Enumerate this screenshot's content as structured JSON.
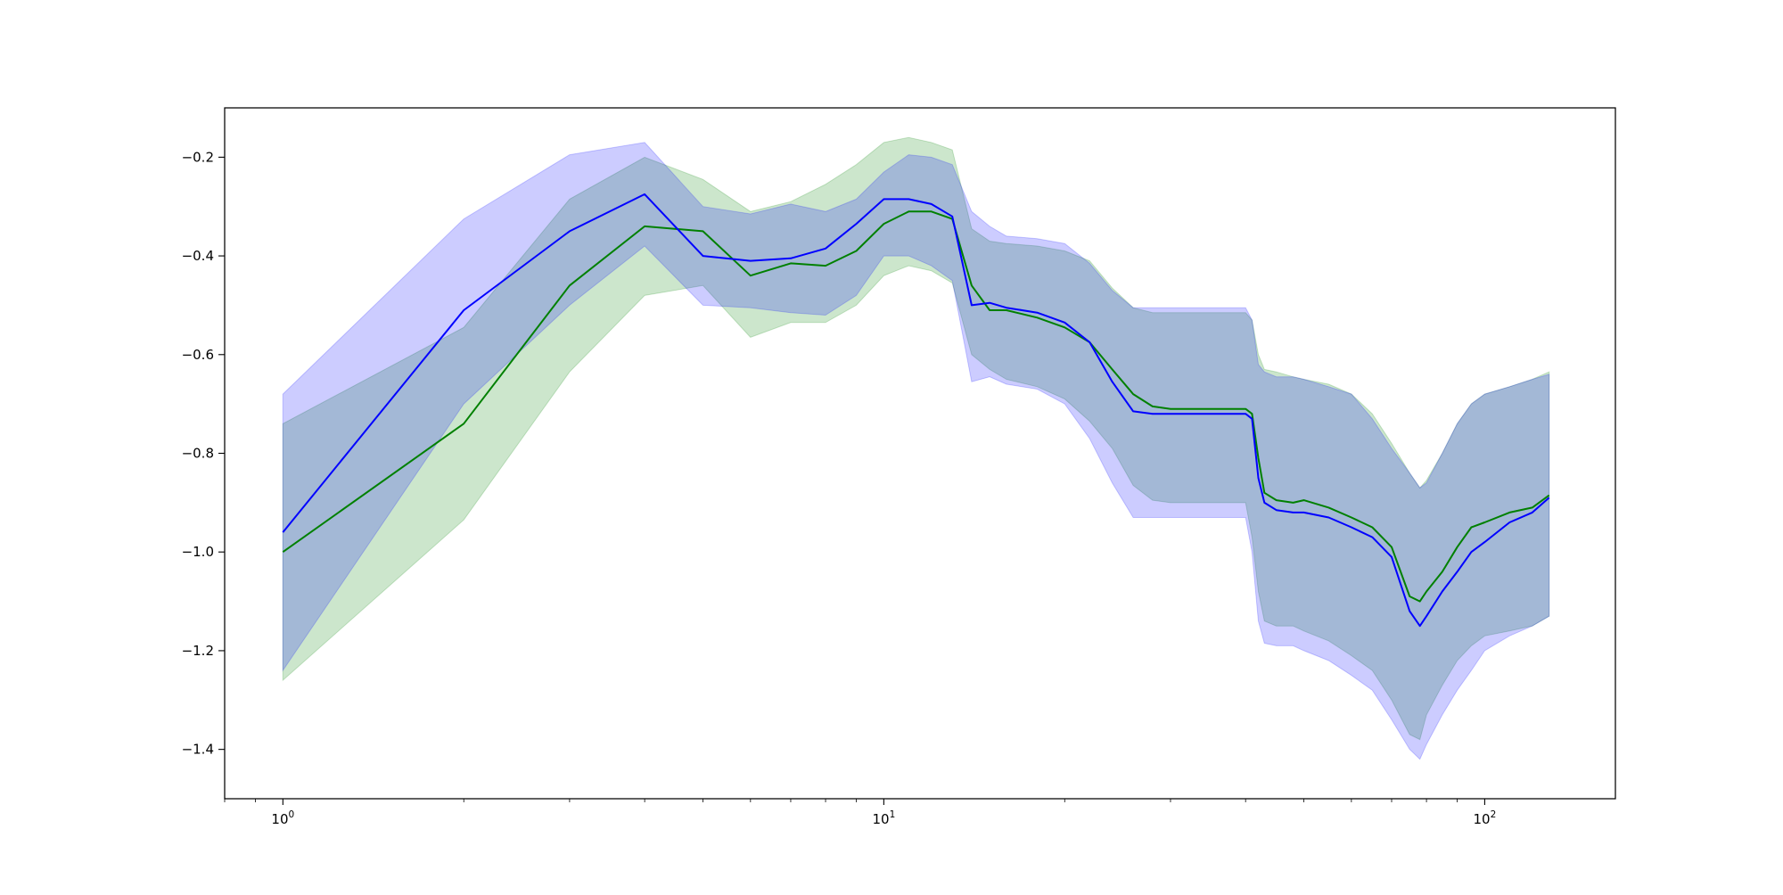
{
  "chart_data": {
    "type": "line",
    "title": "",
    "xlabel": "",
    "ylabel": "",
    "x_scale": "log",
    "xlim": [
      0.8,
      165
    ],
    "ylim": [
      -1.5,
      -0.1
    ],
    "grid": false,
    "legend": "none",
    "x_ticks": [
      {
        "value": 1,
        "base": "10",
        "exp": "0"
      },
      {
        "value": 10,
        "base": "10",
        "exp": "1"
      },
      {
        "value": 100,
        "base": "10",
        "exp": "2"
      }
    ],
    "y_ticks": [
      {
        "value": -0.2,
        "label": "−0.2"
      },
      {
        "value": -0.4,
        "label": "−0.4"
      },
      {
        "value": -0.6,
        "label": "−0.6"
      },
      {
        "value": -0.8,
        "label": "−0.8"
      },
      {
        "value": -1.0,
        "label": "−1.0"
      },
      {
        "value": -1.2,
        "label": "−1.2"
      },
      {
        "value": -1.4,
        "label": "−1.4"
      }
    ],
    "series": [
      {
        "color": "#008000",
        "band_color": "#008000",
        "band_opacity": 0.2,
        "x": [
          1,
          2,
          3,
          4,
          5,
          6,
          7,
          8,
          9,
          10,
          11,
          12,
          13,
          14,
          15,
          16,
          18,
          20,
          22,
          24,
          26,
          28,
          30,
          35,
          40,
          41,
          42,
          43,
          45,
          48,
          50,
          55,
          60,
          65,
          70,
          75,
          78,
          80,
          85,
          90,
          95,
          100,
          110,
          120,
          128
        ],
        "y": [
          -1.0,
          -0.74,
          -0.46,
          -0.34,
          -0.35,
          -0.44,
          -0.415,
          -0.42,
          -0.39,
          -0.335,
          -0.31,
          -0.31,
          -0.325,
          -0.46,
          -0.51,
          -0.51,
          -0.525,
          -0.545,
          -0.575,
          -0.63,
          -0.68,
          -0.705,
          -0.71,
          -0.71,
          -0.71,
          -0.72,
          -0.81,
          -0.88,
          -0.895,
          -0.9,
          -0.895,
          -0.91,
          -0.93,
          -0.95,
          -0.99,
          -1.09,
          -1.1,
          -1.08,
          -1.04,
          -0.99,
          -0.95,
          -0.94,
          -0.92,
          -0.91,
          -0.885
        ],
        "lower": [
          -1.26,
          -0.935,
          -0.635,
          -0.48,
          -0.46,
          -0.565,
          -0.535,
          -0.535,
          -0.5,
          -0.44,
          -0.42,
          -0.43,
          -0.455,
          -0.6,
          -0.63,
          -0.65,
          -0.665,
          -0.69,
          -0.735,
          -0.79,
          -0.865,
          -0.895,
          -0.9,
          -0.9,
          -0.9,
          -0.97,
          -1.08,
          -1.14,
          -1.15,
          -1.15,
          -1.16,
          -1.18,
          -1.21,
          -1.24,
          -1.3,
          -1.37,
          -1.38,
          -1.33,
          -1.27,
          -1.22,
          -1.19,
          -1.17,
          -1.16,
          -1.15,
          -1.13
        ],
        "upper": [
          -0.74,
          -0.545,
          -0.285,
          -0.2,
          -0.245,
          -0.31,
          -0.29,
          -0.255,
          -0.215,
          -0.17,
          -0.16,
          -0.17,
          -0.185,
          -0.345,
          -0.37,
          -0.375,
          -0.38,
          -0.39,
          -0.41,
          -0.465,
          -0.505,
          -0.515,
          -0.515,
          -0.515,
          -0.515,
          -0.53,
          -0.6,
          -0.63,
          -0.635,
          -0.645,
          -0.65,
          -0.66,
          -0.68,
          -0.72,
          -0.78,
          -0.84,
          -0.87,
          -0.855,
          -0.8,
          -0.74,
          -0.7,
          -0.68,
          -0.665,
          -0.65,
          -0.635
        ]
      },
      {
        "color": "#0000ff",
        "band_color": "#0000ff",
        "band_opacity": 0.2,
        "x": [
          1,
          2,
          3,
          4,
          5,
          6,
          7,
          8,
          9,
          10,
          11,
          12,
          13,
          14,
          15,
          16,
          18,
          20,
          22,
          24,
          26,
          28,
          30,
          35,
          40,
          41,
          42,
          43,
          45,
          48,
          50,
          55,
          60,
          65,
          70,
          75,
          78,
          80,
          85,
          90,
          95,
          100,
          110,
          120,
          128
        ],
        "y": [
          -0.96,
          -0.51,
          -0.35,
          -0.275,
          -0.4,
          -0.41,
          -0.405,
          -0.385,
          -0.335,
          -0.285,
          -0.285,
          -0.295,
          -0.32,
          -0.5,
          -0.495,
          -0.505,
          -0.515,
          -0.535,
          -0.575,
          -0.655,
          -0.715,
          -0.72,
          -0.72,
          -0.72,
          -0.72,
          -0.73,
          -0.85,
          -0.9,
          -0.915,
          -0.92,
          -0.92,
          -0.93,
          -0.95,
          -0.97,
          -1.01,
          -1.12,
          -1.15,
          -1.13,
          -1.08,
          -1.04,
          -1.0,
          -0.98,
          -0.94,
          -0.92,
          -0.89
        ],
        "lower": [
          -1.24,
          -0.7,
          -0.5,
          -0.38,
          -0.5,
          -0.505,
          -0.515,
          -0.52,
          -0.48,
          -0.4,
          -0.4,
          -0.42,
          -0.45,
          -0.655,
          -0.645,
          -0.66,
          -0.67,
          -0.7,
          -0.77,
          -0.86,
          -0.93,
          -0.93,
          -0.93,
          -0.93,
          -0.93,
          -1.0,
          -1.14,
          -1.185,
          -1.19,
          -1.19,
          -1.2,
          -1.22,
          -1.25,
          -1.28,
          -1.34,
          -1.4,
          -1.42,
          -1.39,
          -1.33,
          -1.28,
          -1.24,
          -1.2,
          -1.17,
          -1.15,
          -1.13
        ],
        "upper": [
          -0.68,
          -0.325,
          -0.195,
          -0.17,
          -0.3,
          -0.315,
          -0.295,
          -0.31,
          -0.285,
          -0.23,
          -0.195,
          -0.2,
          -0.215,
          -0.31,
          -0.34,
          -0.36,
          -0.365,
          -0.375,
          -0.415,
          -0.47,
          -0.505,
          -0.505,
          -0.505,
          -0.505,
          -0.505,
          -0.53,
          -0.62,
          -0.635,
          -0.645,
          -0.645,
          -0.65,
          -0.665,
          -0.68,
          -0.73,
          -0.79,
          -0.84,
          -0.87,
          -0.86,
          -0.8,
          -0.74,
          -0.7,
          -0.68,
          -0.665,
          -0.65,
          -0.64
        ]
      }
    ]
  }
}
